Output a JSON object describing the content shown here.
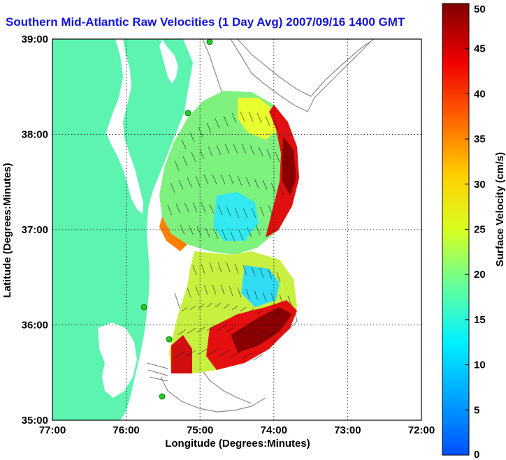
{
  "title": "Southern Mid-Atlantic Raw Velocities (1 Day Avg) 2007/09/16 1400 GMT",
  "x_axis": {
    "label": "Longitude (Degrees:Minutes)",
    "ticks": [
      "77:00",
      "76:00",
      "75:00",
      "74:00",
      "73:00",
      "72:00"
    ],
    "values": [
      -77,
      -76,
      -75,
      -74,
      -73,
      -72
    ]
  },
  "y_axis": {
    "label": "Latitude (Degrees:Minutes)",
    "ticks": [
      "39:00",
      "38:00",
      "37:00",
      "36:00",
      "35:00"
    ],
    "values": [
      39,
      38,
      37,
      36,
      35
    ]
  },
  "colorbar": {
    "label": "Surface Velocity (cm/s)",
    "min": 0,
    "max": 50,
    "ticks": [
      "50",
      "45",
      "40",
      "35",
      "30",
      "25",
      "20",
      "15",
      "10",
      "5",
      "0"
    ]
  },
  "colors": {
    "land": "#5cf4b0",
    "water": "#ffffff",
    "title": "#1414dc",
    "contour": "#8c8c8c",
    "station": "#22cc22"
  },
  "grid": "dotted"
}
